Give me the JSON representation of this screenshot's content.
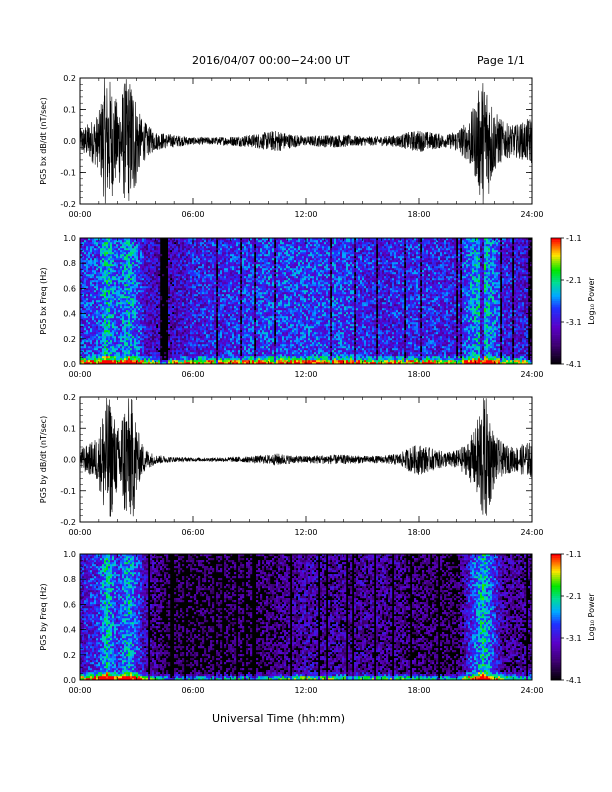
{
  "page": {
    "title": "2016/04/07  00:00−24:00 UT",
    "page_number": "Page 1/1",
    "x_axis_title": "Universal Time (hh:mm)"
  },
  "chart_data": [
    {
      "type": "line",
      "ylabel": "PG5 bx dB/dt (nT/sec)",
      "xlim": [
        0,
        24
      ],
      "ylim": [
        -0.2,
        0.2
      ],
      "x_ticks": [
        "00:00",
        "06:00",
        "12:00",
        "18:00",
        "24:00"
      ],
      "y_ticks": [
        "-0.2",
        "-0.1",
        "0.0",
        "0.1",
        "0.2"
      ],
      "envelope": {
        "x_hours": [
          0,
          0.5,
          1.0,
          1.3,
          1.6,
          2.0,
          2.4,
          2.8,
          3.2,
          3.6,
          4.0,
          5.0,
          6.0,
          7.0,
          8.0,
          9.0,
          10.0,
          10.5,
          11.0,
          11.5,
          12.0,
          13.0,
          14.0,
          15.0,
          16.0,
          17.0,
          17.5,
          18.0,
          18.5,
          19.0,
          19.5,
          20.0,
          20.5,
          21.0,
          21.3,
          21.6,
          22.0,
          22.5,
          23.0,
          23.5,
          24.0
        ],
        "amplitude": [
          0.04,
          0.06,
          0.09,
          0.2,
          0.2,
          0.12,
          0.2,
          0.2,
          0.08,
          0.05,
          0.03,
          0.02,
          0.012,
          0.012,
          0.015,
          0.02,
          0.03,
          0.035,
          0.025,
          0.02,
          0.015,
          0.02,
          0.02,
          0.015,
          0.015,
          0.02,
          0.03,
          0.035,
          0.03,
          0.025,
          0.02,
          0.035,
          0.06,
          0.12,
          0.2,
          0.2,
          0.1,
          0.06,
          0.05,
          0.06,
          0.08
        ]
      }
    },
    {
      "type": "heatmap",
      "ylabel": "PG5 bx Freq (Hz)",
      "xlim": [
        0,
        24
      ],
      "ylim": [
        0,
        1.0
      ],
      "x_ticks": [
        "00:00",
        "06:00",
        "12:00",
        "18:00",
        "24:00"
      ],
      "y_ticks": [
        "0.0",
        "0.2",
        "0.4",
        "0.6",
        "0.8",
        "1.0"
      ],
      "colorbar": {
        "label": "Log₁₀ Power",
        "ticks": [
          "-1.1",
          "-2.1",
          "-3.1",
          "-4.1"
        ],
        "range": [
          -4.1,
          -1.1
        ]
      },
      "activity": {
        "x_hours": [
          0,
          1.0,
          1.4,
          2.0,
          2.6,
          3.5,
          4.5,
          6.0,
          8.0,
          10.0,
          12.0,
          14.0,
          16.0,
          18.0,
          20.0,
          21.4,
          22.5,
          24.0
        ],
        "level": [
          0.55,
          0.6,
          0.85,
          0.6,
          0.8,
          0.45,
          0.35,
          0.5,
          0.55,
          0.6,
          0.6,
          0.6,
          0.5,
          0.55,
          0.5,
          0.85,
          0.5,
          0.45
        ]
      }
    },
    {
      "type": "line",
      "ylabel": "PG5 by dB/dt (nT/sec)",
      "xlim": [
        0,
        24
      ],
      "ylim": [
        -0.2,
        0.2
      ],
      "x_ticks": [
        "00:00",
        "06:00",
        "12:00",
        "18:00",
        "24:00"
      ],
      "y_ticks": [
        "-0.2",
        "-0.1",
        "0.0",
        "0.1",
        "0.2"
      ],
      "envelope": {
        "x_hours": [
          0,
          0.5,
          1.0,
          1.3,
          1.6,
          2.0,
          2.4,
          2.8,
          3.2,
          3.6,
          4.0,
          5.0,
          6.0,
          7.0,
          8.0,
          9.0,
          10.0,
          10.5,
          11.0,
          11.5,
          12.0,
          13.0,
          14.0,
          15.0,
          16.0,
          17.0,
          17.5,
          18.0,
          18.5,
          19.0,
          19.5,
          20.0,
          20.5,
          21.0,
          21.3,
          21.6,
          22.0,
          22.5,
          23.0,
          23.5,
          24.0
        ],
        "amplitude": [
          0.035,
          0.05,
          0.08,
          0.2,
          0.2,
          0.1,
          0.2,
          0.2,
          0.06,
          0.03,
          0.015,
          0.008,
          0.006,
          0.006,
          0.008,
          0.01,
          0.015,
          0.02,
          0.015,
          0.012,
          0.012,
          0.015,
          0.015,
          0.012,
          0.012,
          0.02,
          0.04,
          0.05,
          0.04,
          0.03,
          0.025,
          0.03,
          0.05,
          0.1,
          0.2,
          0.2,
          0.08,
          0.05,
          0.04,
          0.05,
          0.06
        ]
      }
    },
    {
      "type": "heatmap",
      "ylabel": "PG5 by Freq (Hz)",
      "xlim": [
        0,
        24
      ],
      "ylim": [
        0,
        1.0
      ],
      "x_ticks": [
        "00:00",
        "06:00",
        "12:00",
        "18:00",
        "24:00"
      ],
      "y_ticks": [
        "0.0",
        "0.2",
        "0.4",
        "0.6",
        "0.8",
        "1.0"
      ],
      "colorbar": {
        "label": "Log₁₀ Power",
        "ticks": [
          "-1.1",
          "-2.1",
          "-3.1",
          "-4.1"
        ],
        "range": [
          -4.1,
          -1.1
        ]
      },
      "activity": {
        "x_hours": [
          0,
          1.0,
          1.4,
          2.0,
          2.6,
          3.5,
          4.5,
          6.0,
          8.0,
          10.0,
          11.5,
          12.0,
          13.0,
          14.5,
          16.0,
          17.0,
          18.0,
          20.0,
          21.4,
          22.5,
          24.0
        ],
        "level": [
          0.45,
          0.55,
          0.85,
          0.55,
          0.8,
          0.35,
          0.15,
          0.12,
          0.15,
          0.2,
          0.3,
          0.35,
          0.3,
          0.3,
          0.28,
          0.25,
          0.2,
          0.15,
          0.85,
          0.3,
          0.25
        ]
      }
    }
  ]
}
